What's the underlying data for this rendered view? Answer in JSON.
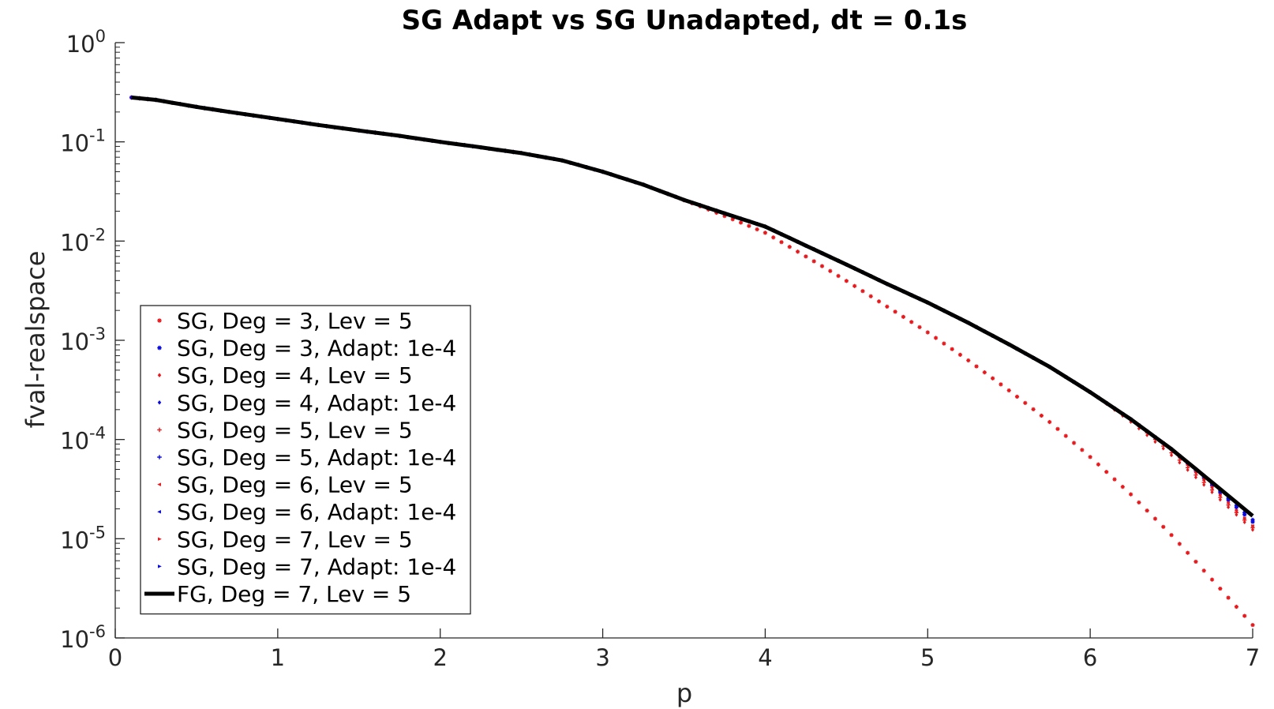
{
  "chart_data": {
    "type": "scatter",
    "title": "SG Adapt vs SG Unadapted, dt = 0.1s",
    "xlabel": "p",
    "ylabel": "fval-realspace",
    "xlim": [
      0,
      7
    ],
    "ylim": [
      1e-06,
      1
    ],
    "yscale": "log",
    "xticks": [
      "0",
      "1",
      "2",
      "3",
      "4",
      "5",
      "6",
      "7"
    ],
    "yticks": [
      {
        "base": "10",
        "exp": "0"
      },
      {
        "base": "10",
        "exp": "-1"
      },
      {
        "base": "10",
        "exp": "-2"
      },
      {
        "base": "10",
        "exp": "-3"
      },
      {
        "base": "10",
        "exp": "-4"
      },
      {
        "base": "10",
        "exp": "-5"
      },
      {
        "base": "10",
        "exp": "-6"
      }
    ],
    "grid": false,
    "legend_position": "lower-left",
    "colors": {
      "red": "#e8191d",
      "blue": "#0a0ae0",
      "black": "#000000"
    },
    "reference_curve": {
      "x": [
        0.1,
        0.25,
        0.5,
        0.75,
        1.0,
        1.25,
        1.5,
        1.75,
        2.0,
        2.25,
        2.5,
        2.75,
        3.0,
        3.25,
        3.5,
        3.75,
        4.0,
        4.25,
        4.5,
        4.75,
        5.0,
        5.25,
        5.5,
        5.75,
        6.0,
        6.25,
        6.5,
        6.75,
        7.0
      ],
      "y": [
        0.28,
        0.265,
        0.225,
        0.195,
        0.17,
        0.148,
        0.13,
        0.115,
        0.1,
        0.088,
        0.077,
        0.065,
        0.05,
        0.037,
        0.026,
        0.019,
        0.014,
        0.009,
        0.0058,
        0.0037,
        0.0024,
        0.0015,
        0.00091,
        0.00054,
        0.0003,
        0.00016,
        8e-05,
        3.7e-05,
        1.7e-05
      ]
    },
    "series": [
      {
        "name": "SG, Deg = 3, Lev = 5",
        "color": "red",
        "marker": "asterisk",
        "line": false,
        "drop_start": 3.4,
        "drop_scale": 0.55,
        "drop_power": 1.6
      },
      {
        "name": "SG, Deg = 3, Adapt: 1e-4",
        "color": "blue",
        "marker": "asterisk",
        "line": false,
        "drop_start": 6.5,
        "drop_scale": 0.03,
        "drop_power": 1.0
      },
      {
        "name": "SG, Deg = 4, Lev = 5",
        "color": "red",
        "marker": "diamond",
        "line": false,
        "drop_start": 6.0,
        "drop_scale": 0.07,
        "drop_power": 1.2
      },
      {
        "name": "SG, Deg = 4, Adapt: 1e-4",
        "color": "blue",
        "marker": "diamond",
        "line": false,
        "drop_start": 6.6,
        "drop_scale": 0.03,
        "drop_power": 1.0
      },
      {
        "name": "SG, Deg = 5, Lev = 5",
        "color": "red",
        "marker": "plus",
        "line": false,
        "drop_start": 6.2,
        "drop_scale": 0.06,
        "drop_power": 1.2
      },
      {
        "name": "SG, Deg = 5, Adapt: 1e-4",
        "color": "blue",
        "marker": "plus",
        "line": false,
        "drop_start": 6.6,
        "drop_scale": 0.02,
        "drop_power": 1.0
      },
      {
        "name": "SG, Deg = 6, Lev = 5",
        "color": "red",
        "marker": "triangle-left",
        "line": false,
        "drop_start": 6.4,
        "drop_scale": 0.05,
        "drop_power": 1.1
      },
      {
        "name": "SG, Deg = 6, Adapt: 1e-4",
        "color": "blue",
        "marker": "triangle-left",
        "line": false,
        "drop_start": 6.7,
        "drop_scale": 0.02,
        "drop_power": 1.0
      },
      {
        "name": "SG, Deg = 7, Lev = 5",
        "color": "red",
        "marker": "triangle-right",
        "line": false,
        "drop_start": 6.5,
        "drop_scale": 0.05,
        "drop_power": 1.1
      },
      {
        "name": "SG, Deg = 7, Adapt: 1e-4",
        "color": "blue",
        "marker": "triangle-right",
        "line": false,
        "drop_start": 6.7,
        "drop_scale": 0.02,
        "drop_power": 1.0
      },
      {
        "name": "FG, Deg = 7, Lev = 5",
        "color": "black",
        "marker": "none",
        "line": true,
        "drop_start": 99,
        "drop_scale": 0,
        "drop_power": 1
      }
    ]
  }
}
